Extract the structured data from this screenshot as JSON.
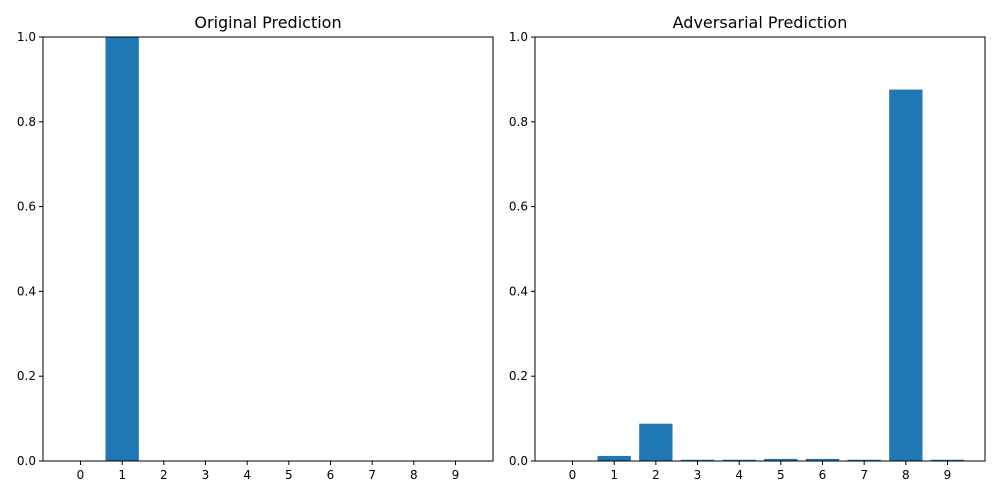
{
  "chart_data": [
    {
      "type": "bar",
      "title": "Original Prediction",
      "xlabel": "",
      "ylabel": "",
      "categories": [
        "0",
        "1",
        "2",
        "3",
        "4",
        "5",
        "6",
        "7",
        "8",
        "9"
      ],
      "values": [
        0.0,
        1.0,
        0.0,
        0.0,
        0.0,
        0.0,
        0.0,
        0.0,
        0.0,
        0.0
      ],
      "ylim": [
        0,
        1.0
      ],
      "yticks": [
        "0.0",
        "0.2",
        "0.4",
        "0.6",
        "0.8",
        "1.0"
      ],
      "bar_color": "#1f77b4",
      "grid": false
    },
    {
      "type": "bar",
      "title": "Adversarial Prediction",
      "xlabel": "",
      "ylabel": "",
      "categories": [
        "0",
        "1",
        "2",
        "3",
        "4",
        "5",
        "6",
        "7",
        "8",
        "9"
      ],
      "values": [
        0.001,
        0.012,
        0.088,
        0.003,
        0.003,
        0.005,
        0.005,
        0.003,
        0.876,
        0.003
      ],
      "ylim": [
        0,
        1.0
      ],
      "yticks": [
        "0.0",
        "0.2",
        "0.4",
        "0.6",
        "0.8",
        "1.0"
      ],
      "bar_color": "#1f77b4",
      "grid": false
    }
  ]
}
